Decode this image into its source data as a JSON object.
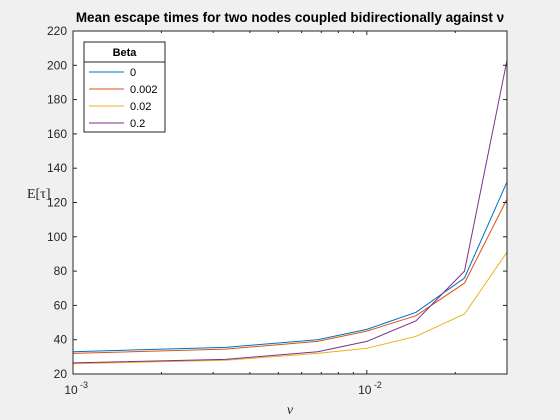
{
  "chart_data": {
    "type": "line",
    "title": "Mean escape times for two nodes coupled bidirectionally against ν",
    "xlabel": "ν",
    "ylabel": "E[τ]",
    "xscale": "log",
    "xlim": [
      0.001,
      0.03
    ],
    "ylim": [
      20,
      220
    ],
    "yticks": [
      20,
      40,
      60,
      80,
      100,
      120,
      140,
      160,
      180,
      200,
      220
    ],
    "xticks": [
      {
        "value": 0.001,
        "base": "10",
        "exp": "-3"
      },
      {
        "value": 0.01,
        "base": "10",
        "exp": "-2"
      }
    ],
    "grid": false,
    "legend_title": "Beta",
    "legend_position": "top-left",
    "x": [
      0.001,
      0.0033,
      0.0068,
      0.01,
      0.0147,
      0.0215,
      0.03
    ],
    "series": [
      {
        "name": "0",
        "color": "#0072BD",
        "values": [
          33,
          35.5,
          40,
          46,
          56,
          76,
          132
        ]
      },
      {
        "name": "0.002",
        "color": "#D95319",
        "values": [
          32,
          34.5,
          39,
          45,
          54,
          73,
          122
        ]
      },
      {
        "name": "0.02",
        "color": "#EDB120",
        "values": [
          26,
          28,
          32,
          35,
          42,
          55,
          91
        ]
      },
      {
        "name": "0.2",
        "color": "#7E2F8E",
        "values": [
          26.5,
          28.5,
          33,
          39,
          51,
          80,
          203
        ]
      }
    ]
  }
}
